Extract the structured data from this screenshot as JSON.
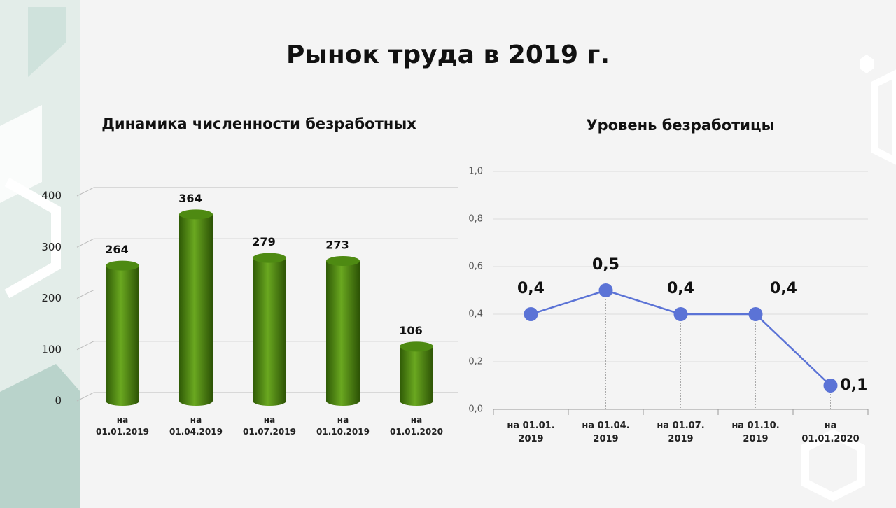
{
  "title": "Рынок труда в 2019 г.",
  "chart_data": [
    {
      "type": "bar",
      "title": "Динамика численности безработных",
      "categories": [
        "на 01.01.2019",
        "на 01.04.2019",
        "на 01.07.2019",
        "на 01.10.2019",
        "на 01.01.2020"
      ],
      "values": [
        264,
        364,
        279,
        273,
        106
      ],
      "color": "#4e8a12",
      "ylim": [
        0,
        400
      ],
      "yticks": [
        0,
        100,
        200,
        300,
        400
      ],
      "grid": true
    },
    {
      "type": "line",
      "title": "Уровень безработицы",
      "categories": [
        "на 01.01. 2019",
        "на 01.04. 2019",
        "на 01.07. 2019",
        "на 01.10. 2019",
        "на 01.01.2020"
      ],
      "values": [
        0.4,
        0.5,
        0.4,
        0.4,
        0.1
      ],
      "value_labels": [
        "0,4",
        "0,5",
        "0,4",
        "0,4",
        "0,1"
      ],
      "color": "#5b73d6",
      "ylim": [
        0,
        1
      ],
      "yticks": [
        {
          "value": 0,
          "label": "0,0"
        },
        {
          "value": 0.2,
          "label": "0,2"
        },
        {
          "value": 0.4,
          "label": "0,4"
        },
        {
          "value": 0.6,
          "label": "0,6"
        },
        {
          "value": 0.8,
          "label": "0,8"
        },
        {
          "value": 1,
          "label": "1,0"
        }
      ],
      "grid": true
    }
  ]
}
